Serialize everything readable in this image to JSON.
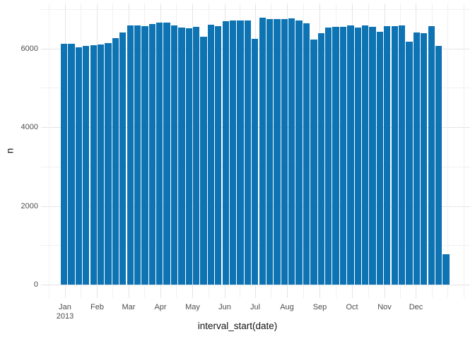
{
  "figure": {
    "kind": "ggplot-style weekly bar chart",
    "background": "#ffffff"
  },
  "axes": {
    "x_title": "interval_start(date)",
    "y_title": "n",
    "x_tick_labels": [
      "Jan",
      "Feb",
      "Mar",
      "Apr",
      "May",
      "Jun",
      "Jul",
      "Aug",
      "Sep",
      "Oct",
      "Nov",
      "Dec"
    ],
    "x_first_tick_second_line": "2013",
    "y_tick_labels": [
      "0",
      "2000",
      "4000",
      "6000"
    ]
  },
  "style": {
    "bar_color": "#0d73b2",
    "grid_major_color": "#e4e4e4",
    "grid_minor_color": "#f0f0f0",
    "tick_label_color": "#4d4d4d",
    "axis_title_color": "#111111"
  },
  "chart_data": {
    "type": "bar",
    "title": "",
    "xlabel": "interval_start(date)",
    "ylabel": "n",
    "x_unit": "week starting (weekly bins of daily records, year 2013)",
    "categories": [
      "2013-W01",
      "2013-W02",
      "2013-W03",
      "2013-W04",
      "2013-W05",
      "2013-W06",
      "2013-W07",
      "2013-W08",
      "2013-W09",
      "2013-W10",
      "2013-W11",
      "2013-W12",
      "2013-W13",
      "2013-W14",
      "2013-W15",
      "2013-W16",
      "2013-W17",
      "2013-W18",
      "2013-W19",
      "2013-W20",
      "2013-W21",
      "2013-W22",
      "2013-W23",
      "2013-W24",
      "2013-W25",
      "2013-W26",
      "2013-W27",
      "2013-W28",
      "2013-W29",
      "2013-W30",
      "2013-W31",
      "2013-W32",
      "2013-W33",
      "2013-W34",
      "2013-W35",
      "2013-W36",
      "2013-W37",
      "2013-W38",
      "2013-W39",
      "2013-W40",
      "2013-W41",
      "2013-W42",
      "2013-W43",
      "2013-W44",
      "2013-W45",
      "2013-W46",
      "2013-W47",
      "2013-W48",
      "2013-W49",
      "2013-W50",
      "2013-W51",
      "2013-W52",
      "2013-W53"
    ],
    "values": [
      6130,
      6130,
      6030,
      6075,
      6095,
      6110,
      6145,
      6270,
      6415,
      6585,
      6585,
      6580,
      6630,
      6665,
      6660,
      6590,
      6545,
      6525,
      6560,
      6310,
      6610,
      6580,
      6695,
      6720,
      6715,
      6710,
      6255,
      6790,
      6755,
      6755,
      6755,
      6765,
      6710,
      6640,
      6240,
      6395,
      6530,
      6565,
      6565,
      6600,
      6530,
      6585,
      6565,
      6430,
      6580,
      6580,
      6585,
      6185,
      6415,
      6395,
      6575,
      6080,
      776
    ],
    "y_ticks": [
      0,
      2000,
      4000,
      6000
    ],
    "y_minor_ticks": [
      1000,
      3000,
      5000,
      7000
    ],
    "ylim": [
      -380,
      7480
    ],
    "grid": "major and minor, light gray on white",
    "legend": "none"
  }
}
